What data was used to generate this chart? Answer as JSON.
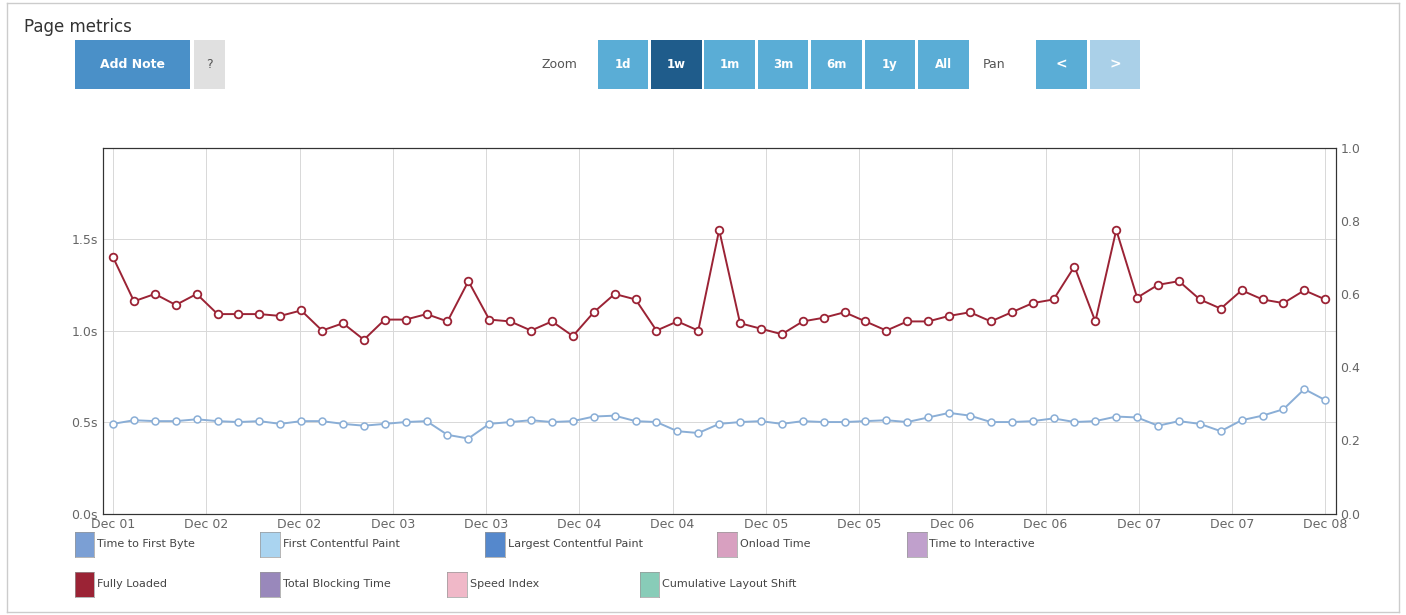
{
  "title": "Page metrics",
  "background_color": "#ffffff",
  "plot_bg_color": "#ffffff",
  "grid_color": "#d8d8d8",
  "outer_border_color": "#cccccc",
  "x_labels": [
    "Dec 01",
    "Dec 02",
    "Dec 02",
    "Dec 03",
    "Dec 03",
    "Dec 04",
    "Dec 04",
    "Dec 05",
    "Dec 05",
    "Dec 06",
    "Dec 06",
    "Dec 07",
    "Dec 07",
    "Dec 08"
  ],
  "fully_loaded": [
    1.4,
    1.16,
    1.2,
    1.14,
    1.2,
    1.09,
    1.09,
    1.09,
    1.08,
    1.11,
    1.0,
    1.04,
    0.95,
    1.06,
    1.06,
    1.09,
    1.05,
    1.27,
    1.06,
    1.05,
    1.0,
    1.05,
    0.97,
    1.1,
    1.2,
    1.17,
    1.0,
    1.05,
    1.0,
    1.55,
    1.04,
    1.01,
    0.98,
    1.05,
    1.07,
    1.1,
    1.05,
    1.0,
    1.05,
    1.05,
    1.08,
    1.1,
    1.05,
    1.1,
    1.15,
    1.17,
    1.35,
    1.05,
    1.55,
    1.18,
    1.25,
    1.27,
    1.17,
    1.12,
    1.22,
    1.17,
    1.15,
    1.22,
    1.17
  ],
  "time_to_first_byte": [
    0.49,
    0.51,
    0.505,
    0.505,
    0.515,
    0.505,
    0.5,
    0.505,
    0.49,
    0.505,
    0.505,
    0.49,
    0.48,
    0.49,
    0.5,
    0.505,
    0.43,
    0.41,
    0.49,
    0.5,
    0.51,
    0.5,
    0.505,
    0.53,
    0.535,
    0.505,
    0.5,
    0.45,
    0.44,
    0.49,
    0.5,
    0.505,
    0.49,
    0.505,
    0.5,
    0.5,
    0.505,
    0.51,
    0.5,
    0.525,
    0.55,
    0.535,
    0.5,
    0.5,
    0.505,
    0.52,
    0.5,
    0.505,
    0.53,
    0.525,
    0.48,
    0.505,
    0.49,
    0.45,
    0.51,
    0.535,
    0.57,
    0.68,
    0.62
  ],
  "fully_loaded_color": "#9b2335",
  "time_to_first_byte_color": "#8aaed6",
  "left_ylim": [
    0.0,
    2.0
  ],
  "right_ylim": [
    0.0,
    1.0
  ],
  "left_yticks": [
    0.0,
    0.5,
    1.0,
    1.5
  ],
  "left_yticklabels": [
    "0.0s",
    "0.5s",
    "1.0s",
    "1.5s"
  ],
  "right_yticks": [
    0.0,
    0.2,
    0.4,
    0.6,
    0.8,
    1.0
  ],
  "right_yticklabels": [
    "0.0",
    "0.2",
    "0.4",
    "0.6",
    "0.8",
    "1.0"
  ],
  "legend_row1": [
    {
      "label": "Time to First Byte",
      "color": "#7b9fd4"
    },
    {
      "label": "First Contentful Paint",
      "color": "#aad4f0"
    },
    {
      "label": "Largest Contentful Paint",
      "color": "#5588cc"
    },
    {
      "label": "Onload Time",
      "color": "#d8a0c0"
    },
    {
      "label": "Time to Interactive",
      "color": "#c0a0cc"
    }
  ],
  "legend_row2": [
    {
      "label": "Fully Loaded",
      "color": "#9b2335"
    },
    {
      "label": "Total Blocking Time",
      "color": "#9988bb"
    },
    {
      "label": "Speed Index",
      "color": "#f0b8c8"
    },
    {
      "label": "Cumulative Layout Shift",
      "color": "#88ccb8"
    }
  ],
  "zoom_buttons": [
    "1d",
    "1w",
    "1m",
    "3m",
    "6m",
    "1y",
    "All"
  ],
  "active_zoom": "1w",
  "btn_active_color": "#1f5c8b",
  "btn_normal_color": "#5aadd6",
  "btn_light_color": "#aad0e8",
  "add_note_color": "#4a90c8",
  "tick_color": "#666666",
  "label_fontsize": 9,
  "chart_spine_color": "#333333"
}
